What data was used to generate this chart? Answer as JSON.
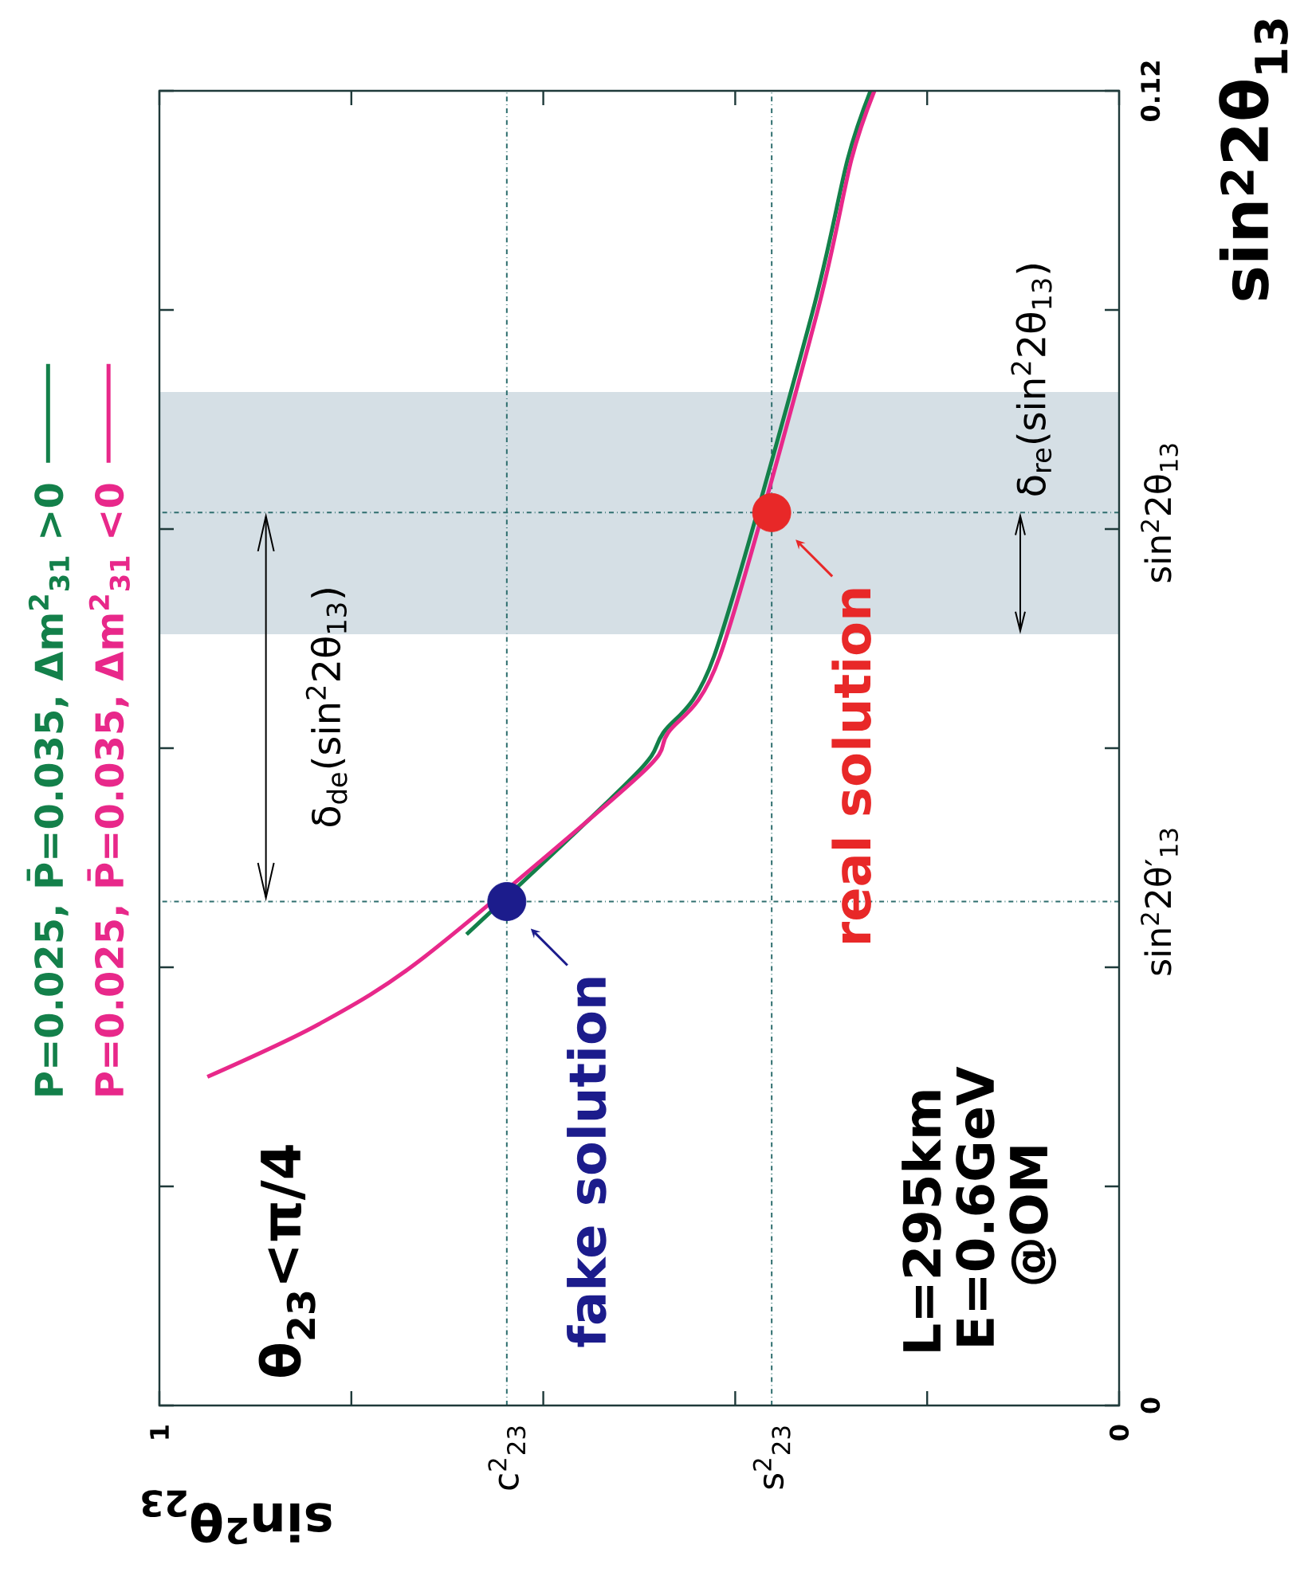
{
  "chart_data": {
    "type": "line",
    "xlabel": "sin$^{2}$θ$_{23}$",
    "ylabel": "sin$^{2}$2θ$_{13}$",
    "xlim": [
      1,
      0
    ],
    "ylim": [
      0,
      0.12
    ],
    "xticks": [
      1,
      {
        "value": 0.8,
        "label": null
      },
      {
        "value": 0.6,
        "label": null
      },
      {
        "value": 0.4,
        "label": null
      },
      {
        "value": 0.2,
        "label": null
      },
      0
    ],
    "yticks": [
      0,
      {
        "value": 0.02,
        "label": null
      },
      {
        "value": 0.04,
        "label": null
      },
      {
        "value": 0.06,
        "label": null
      },
      {
        "value": 0.08,
        "label": null
      },
      {
        "value": 0.1,
        "label": null
      },
      0.12
    ],
    "series": [
      {
        "name": "P=0.025, P̄=0.035, Δm$^{2}$$_{31}$ >0",
        "color": "#13804a",
        "x": [
          0.68,
          0.505,
          0.475,
          0.422,
          0.321,
          0.283,
          0.259
        ],
        "values": [
          0.043,
          0.0575,
          0.0614,
          0.0684,
          0.0993,
          0.1137,
          0.12
        ]
      },
      {
        "name": "P=0.025, P̄=0.035, Δm$^{2}$$_{31}$ <0",
        "color": "#e8288a",
        "x": [
          0.95,
          0.834,
          0.723,
          0.5,
          0.47,
          0.416,
          0.316,
          0.279,
          0.255
        ],
        "values": [
          0.03,
          0.0348,
          0.041,
          0.0575,
          0.0614,
          0.0684,
          0.0993,
          0.1137,
          0.12
        ]
      },
      {
        "type": "scatter",
        "x": [
          0.638,
          0.362
        ],
        "values": [
          0.046,
          0.0815
        ],
        "colors": [
          "#1c1c8c",
          "#e82828"
        ]
      }
    ],
    "ref_lines": [
      {
        "axis": "y",
        "value": 0.046,
        "label": "sin$^{2}$2θ′$_{13}$",
        "color": "#2f6f6f",
        "line_style": "dashdot"
      },
      {
        "axis": "y",
        "value": 0.0815,
        "label": "sin$^{2}$2θ$_{13}$",
        "color": "#2f6f6f",
        "line_style": "dashdot"
      },
      {
        "axis": "x",
        "value": 0.638,
        "label": "c$^{2}$$_{23}$",
        "color": "#2f6f6f",
        "line_style": "dashdot"
      },
      {
        "axis": "x",
        "value": 0.362,
        "label": "s$^{2}$$_{23}$",
        "color": "#2f6f6f",
        "line_style": "dashdot"
      }
    ],
    "bands": [
      {
        "axis": "y",
        "from": 0.0704,
        "to": 0.0925,
        "color": "#d5dfe5"
      }
    ],
    "annotations": [
      "θ$_{23}$<π/4",
      "L=295km",
      "E=0.6GeV",
      "@OM",
      {
        "text": "fake solution",
        "x": 0.638,
        "y": 0.046
      },
      {
        "text": "real solution",
        "x": 0.362,
        "y": 0.0815
      },
      "δ$_{de}$(sin$^{2}$2θ$_{13}$)",
      {
        "text": "δ$_{re}$(sin$^{2}$2θ$_{13}$)",
        "x": 0.103,
        "y": 0.0815
      }
    ],
    "legend": "left"
  }
}
